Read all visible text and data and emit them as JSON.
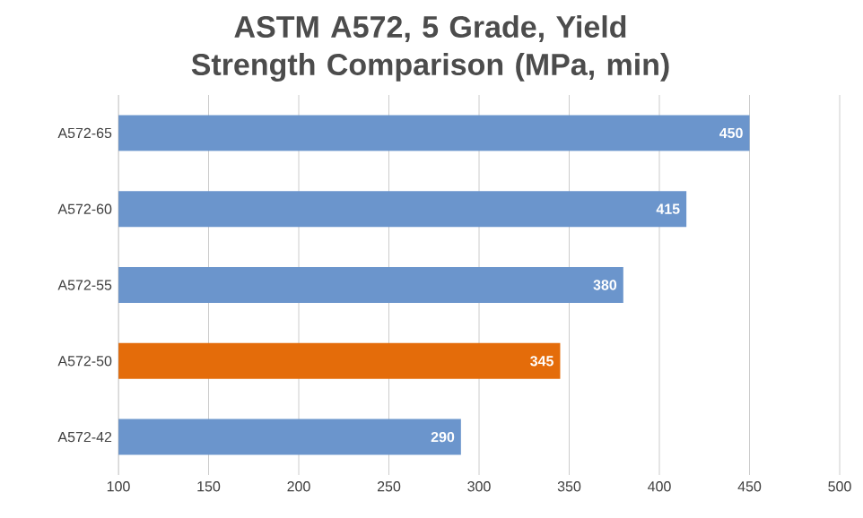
{
  "chart_data": {
    "type": "bar",
    "orientation": "horizontal",
    "title": "ASTM A572, 5 Grade, Yield Strength Comparison (MPa, min)",
    "categories": [
      "A572-65",
      "A572-60",
      "A572-55",
      "A572-50",
      "A572-42"
    ],
    "values": [
      450,
      415,
      380,
      345,
      290
    ],
    "colors": [
      "#6b95cc",
      "#6b95cc",
      "#6b95cc",
      "#e46c0a",
      "#6b95cc"
    ],
    "xlim": [
      100,
      500
    ],
    "xticks": [
      100,
      150,
      200,
      250,
      300,
      350,
      400,
      450,
      500
    ],
    "grid": "x",
    "data_labels": true
  }
}
